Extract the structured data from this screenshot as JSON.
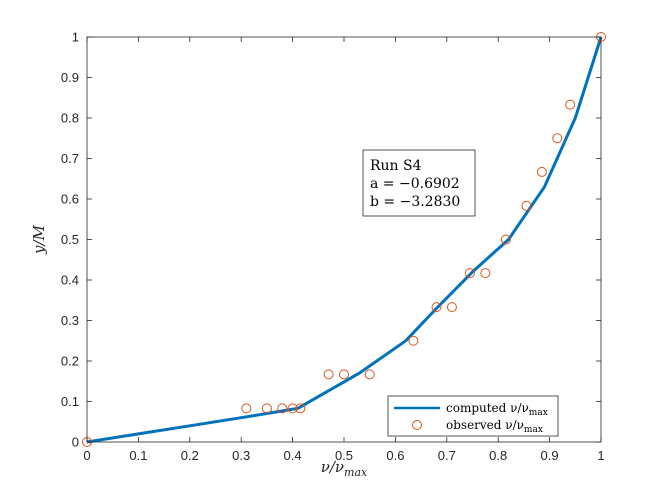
{
  "chart_data": {
    "type": "line",
    "xlabel": "ν/ν",
    "xlabel_sub": "max",
    "ylabel": "y/M",
    "xlim": [
      0,
      1
    ],
    "ylim": [
      0,
      1
    ],
    "xticks": [
      "0",
      "0.1",
      "0.2",
      "0.3",
      "0.4",
      "0.5",
      "0.6",
      "0.7",
      "0.8",
      "0.9",
      "1"
    ],
    "yticks": [
      "0",
      "0.1",
      "0.2",
      "0.3",
      "0.4",
      "0.5",
      "0.6",
      "0.7",
      "0.8",
      "0.9",
      "1"
    ],
    "grid": false,
    "legend_position": "bottom-right",
    "series": [
      {
        "name": "computed ν/ν",
        "name_sub": "max",
        "kind": "line",
        "color": "#0072BD",
        "x": [
          0,
          0.1,
          0.2,
          0.3,
          0.41,
          0.53,
          0.62,
          0.68,
          0.75,
          0.82,
          0.89,
          0.95,
          1.0
        ],
        "y": [
          0,
          0.02,
          0.04,
          0.06,
          0.083,
          0.17,
          0.25,
          0.33,
          0.42,
          0.5,
          0.63,
          0.8,
          1.0
        ]
      },
      {
        "name": "observed ν/ν",
        "name_sub": "max",
        "kind": "scatter",
        "color": "#D95319",
        "x": [
          0,
          0.31,
          0.35,
          0.38,
          0.4,
          0.415,
          0.47,
          0.5,
          0.55,
          0.635,
          0.68,
          0.71,
          0.745,
          0.775,
          0.815,
          0.855,
          0.885,
          0.915,
          0.94,
          1.0
        ],
        "y": [
          0,
          0.083,
          0.083,
          0.083,
          0.083,
          0.083,
          0.167,
          0.167,
          0.167,
          0.25,
          0.333,
          0.333,
          0.417,
          0.417,
          0.5,
          0.583,
          0.667,
          0.75,
          0.833,
          1.0
        ]
      }
    ],
    "annotation": {
      "lines": [
        "Run S4",
        "a = −0.6902",
        "b = −3.2830"
      ]
    }
  }
}
